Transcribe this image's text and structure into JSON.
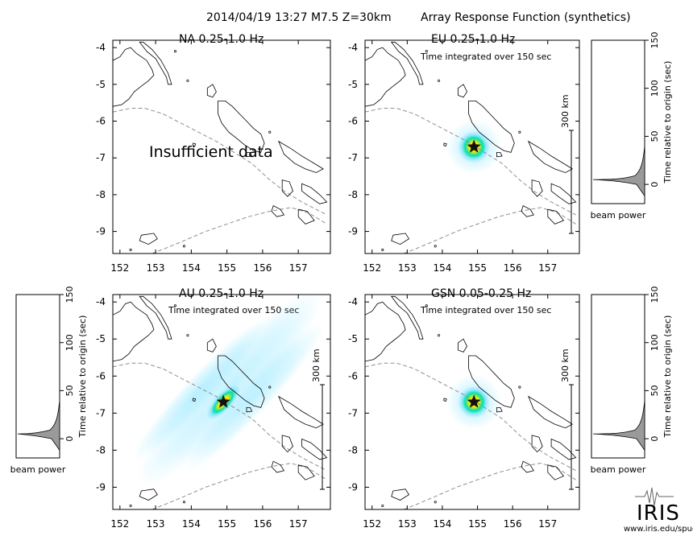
{
  "header": {
    "event": "2014/04/19 13:27  M7.5  Z=30km",
    "title": "Array Response Function (synthetics)"
  },
  "logo": {
    "text": "IRIS",
    "url": "www.iris.edu/spud"
  },
  "maps": [
    {
      "id": "na",
      "label": "NA  0.25-1.0 Hz",
      "subtitle": "",
      "note": "Insufficient data",
      "scale_label": "",
      "beam": null
    },
    {
      "id": "eu",
      "label": "EU  0.25-1.0 Hz",
      "subtitle": "Time integrated over 150 sec",
      "note": "",
      "scale_label": "300 km",
      "beam": "right"
    },
    {
      "id": "au",
      "label": "AU  0.25-1.0 Hz",
      "subtitle": "Time integrated over 150 sec",
      "note": "",
      "scale_label": "300 km",
      "beam": "left"
    },
    {
      "id": "gsn",
      "label": "GSN  0.05-0.25 Hz",
      "subtitle": "Time integrated over 150 sec",
      "note": "",
      "scale_label": "300 km",
      "beam": "right"
    }
  ],
  "chart_data": {
    "type": "heatmap",
    "x_ticks": [
      152,
      153,
      154,
      155,
      156,
      157
    ],
    "y_ticks": [
      -4,
      -5,
      -6,
      -7,
      -8,
      -9
    ],
    "xlim": [
      151.8,
      157.9
    ],
    "ylim": [
      -9.6,
      -3.8
    ],
    "epicenter": {
      "lon": 154.9,
      "lat": -6.7
    },
    "beam_plots": {
      "ylabel": "Time relative to origin (sec)",
      "xlabel": "beam power",
      "y_ticks": [
        0,
        50,
        100,
        150
      ],
      "ylim": [
        -20,
        150
      ]
    }
  },
  "colors": {
    "star": "#111111",
    "peak": "#ff2a00",
    "mid": "#ffee00",
    "outer": "#00e0b0",
    "halo": "#8fe6ff",
    "beam_fill": "#9a9a9a",
    "coast": "#000000",
    "trench": "#909090"
  }
}
